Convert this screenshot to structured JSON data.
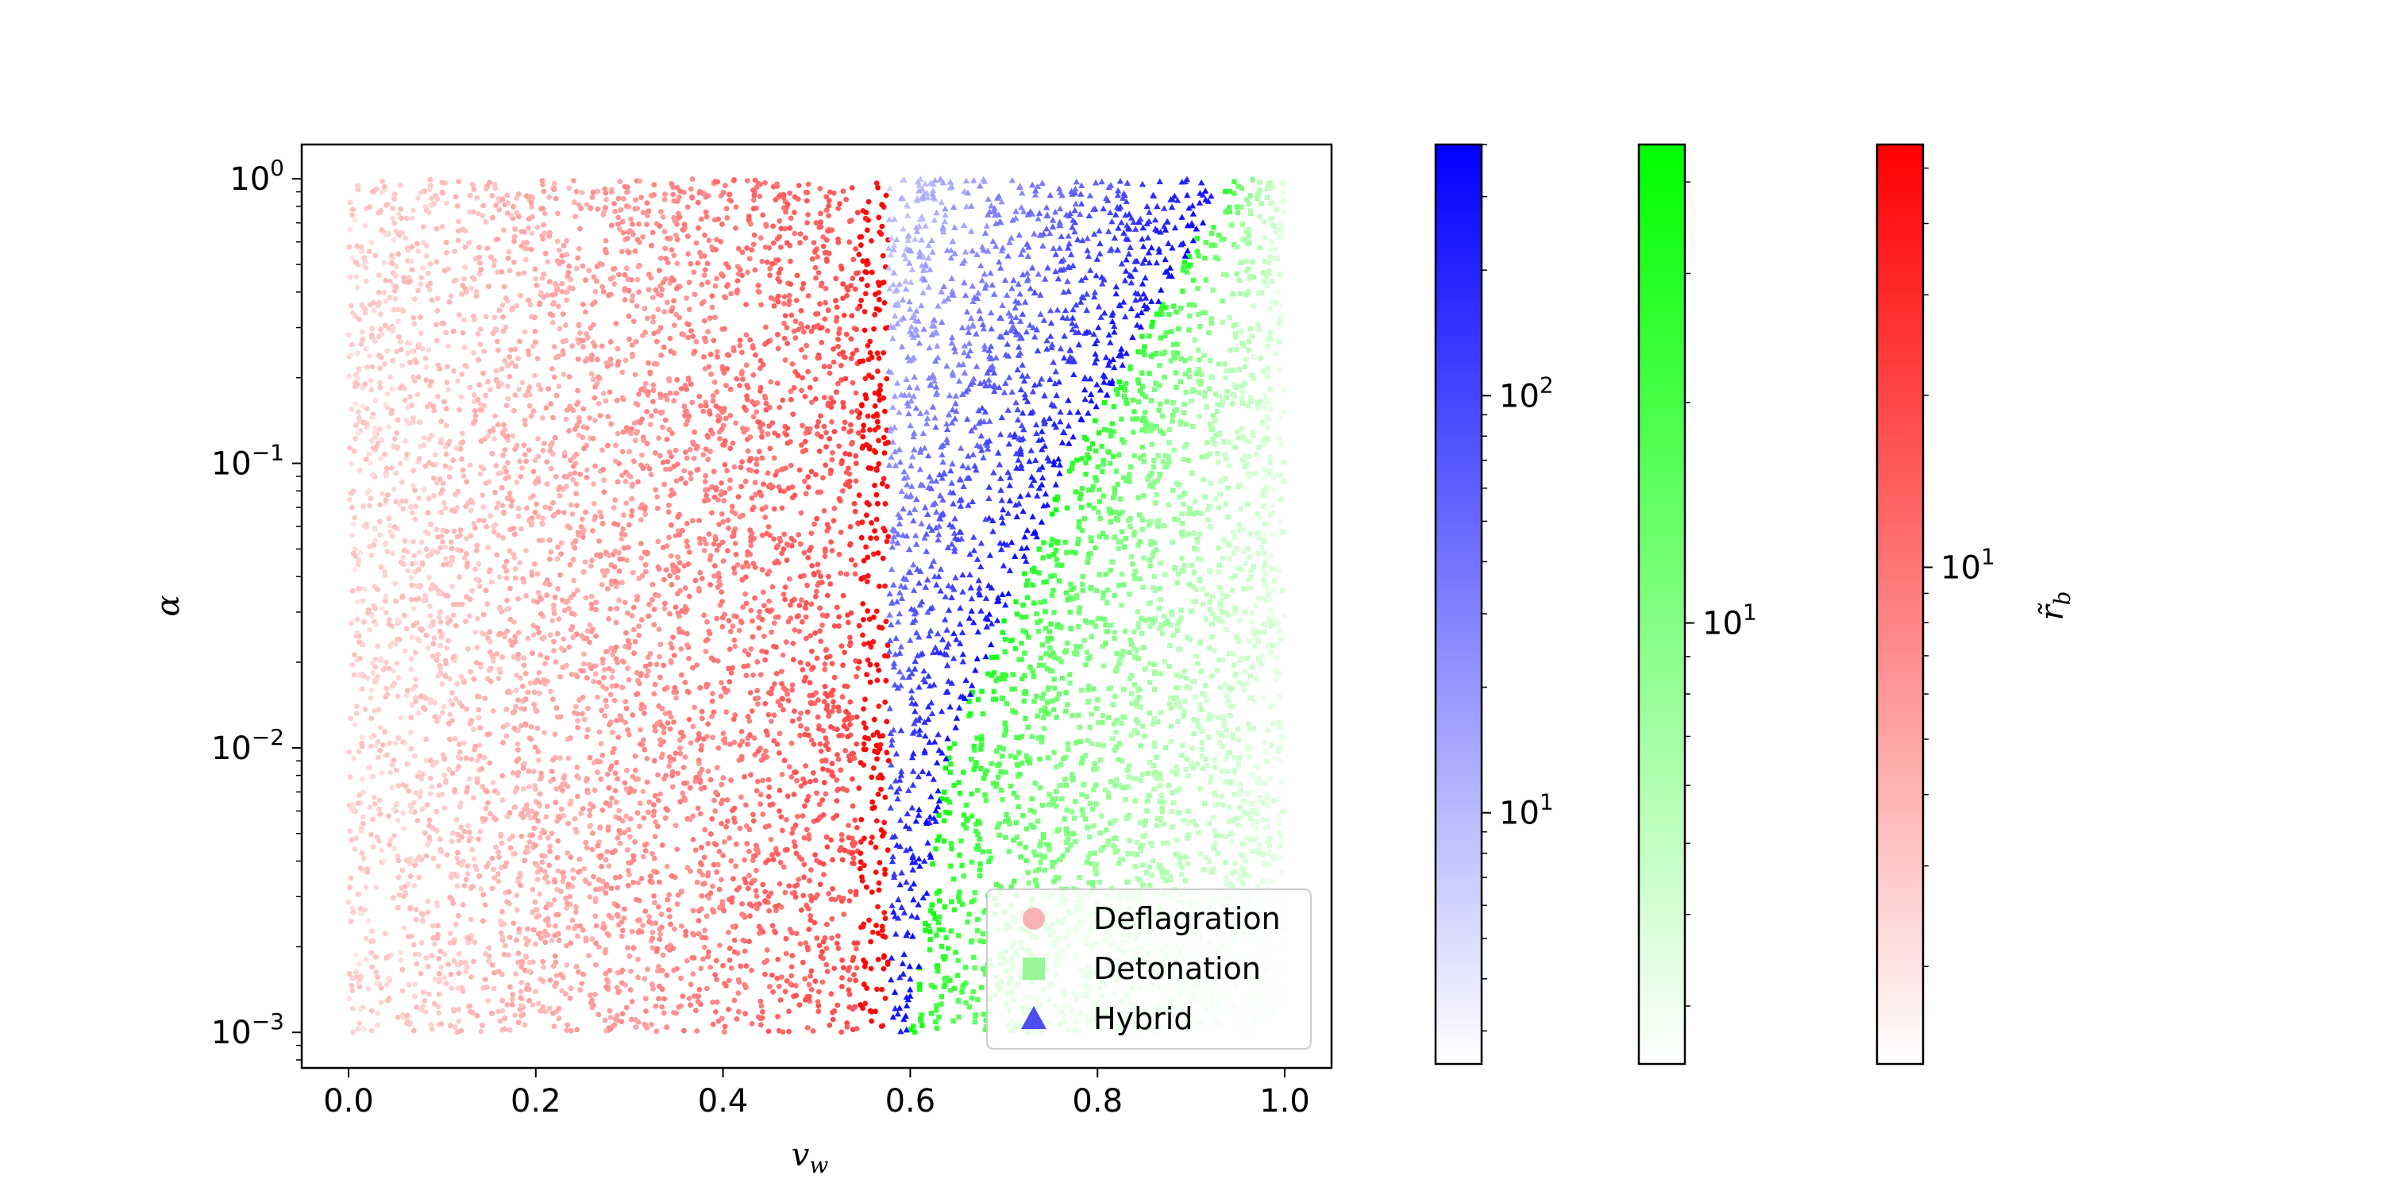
{
  "chart_data": {
    "type": "scatter",
    "xlabel": "v_w",
    "ylabel": "α",
    "xlim": [
      -0.05,
      1.05
    ],
    "ylim": [
      0.00075,
      1.32
    ],
    "yscale": "log",
    "grid": false,
    "legend_position": "bottom-right",
    "x_ticks": [
      {
        "value": 0.0,
        "label": "0.0"
      },
      {
        "value": 0.2,
        "label": "0.2"
      },
      {
        "value": 0.4,
        "label": "0.4"
      },
      {
        "value": 0.6,
        "label": "0.6"
      },
      {
        "value": 0.8,
        "label": "0.8"
      },
      {
        "value": 1.0,
        "label": "1.0"
      }
    ],
    "y_ticks": [
      {
        "value": 1,
        "base": "10",
        "exp": "0"
      },
      {
        "value": 0.1,
        "base": "10",
        "exp": "−1"
      },
      {
        "value": 0.01,
        "base": "10",
        "exp": "−2"
      },
      {
        "value": 0.001,
        "base": "10",
        "exp": "−3"
      }
    ],
    "series": [
      {
        "name": "Deflagration",
        "marker": "circle",
        "color": "#ff0000",
        "legend_color": "#f7b3b3",
        "v_w_range": [
          0.0,
          0.577
        ],
        "alpha_range": [
          0.001,
          1.0
        ]
      },
      {
        "name": "Detonation",
        "marker": "square",
        "color": "#00ff00",
        "legend_color": "#99f799",
        "v_w_range": [
          0.6,
          1.0
        ],
        "alpha_range": [
          0.001,
          1.0
        ],
        "lower_boundary": [
          [
            0.6,
            0.001
          ],
          [
            0.64,
            0.01
          ],
          [
            0.77,
            0.1
          ],
          [
            0.94,
            1.0
          ]
        ]
      },
      {
        "name": "Hybrid",
        "marker": "triangle",
        "color": "#0000ff",
        "legend_color": "#4d4df0",
        "v_w_range": [
          0.577,
          0.94
        ],
        "alpha_range": [
          0.001,
          1.0
        ]
      }
    ],
    "colorbars": [
      {
        "name": "Hybrid",
        "color": "#0000ff",
        "scale": "log",
        "range": [
          2.5,
          400
        ],
        "major_ticks": [
          {
            "value": 10,
            "base": "10",
            "exp": "1"
          },
          {
            "value": 100,
            "base": "10",
            "exp": "2"
          }
        ],
        "label": ""
      },
      {
        "name": "Detonation",
        "color": "#00ff00",
        "scale": "log",
        "range": [
          2.5,
          45
        ],
        "major_ticks": [
          {
            "value": 10,
            "base": "10",
            "exp": "1"
          }
        ],
        "label": ""
      },
      {
        "name": "Deflagration",
        "color": "#ff0000",
        "scale": "log",
        "range": [
          1.35,
          55
        ],
        "major_ticks": [
          {
            "value": 10,
            "base": "10",
            "exp": "1"
          }
        ],
        "label": "r̃_b"
      }
    ]
  },
  "labels": {
    "xlabel_main": "v",
    "xlabel_sub": "w",
    "ylabel": "α",
    "cb_label_main": "r̃",
    "cb_label_sub": "b"
  }
}
